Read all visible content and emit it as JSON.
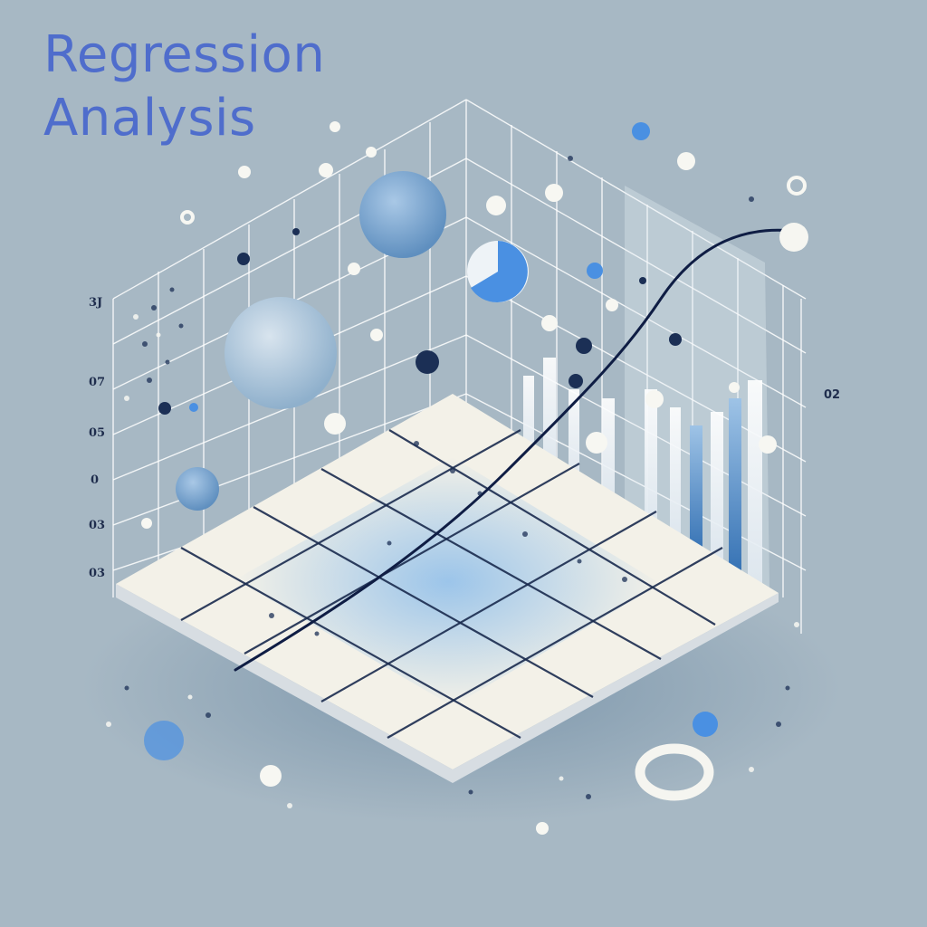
{
  "title": {
    "line1": "Regression",
    "line2": "Analysis"
  },
  "axis_labels": [
    "3J",
    "07",
    "05",
    "0",
    "03",
    "03"
  ],
  "right_label": "02",
  "colors": {
    "background": "#a7b8c4",
    "title": "#4f6dcc",
    "tile": "#f3f1e8",
    "grid_line": "#ffffff",
    "curve": "#0f1d44",
    "accent_blue": "#4a90e2",
    "navy_dot": "#1b2f55"
  }
}
